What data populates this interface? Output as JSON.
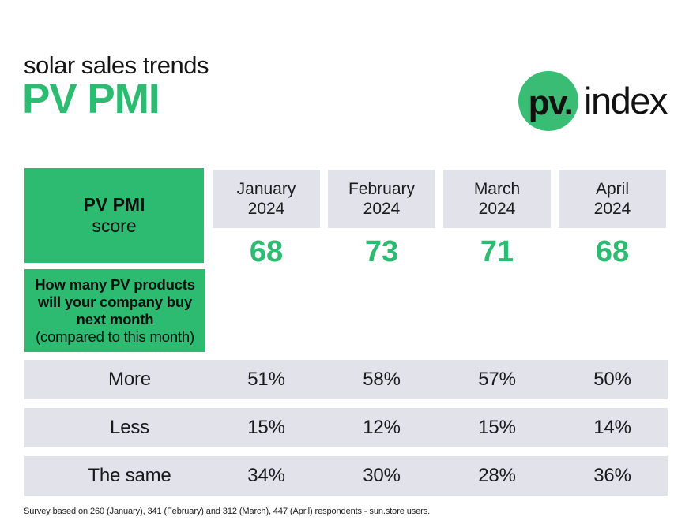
{
  "header": {
    "subtitle": "solar sales trends",
    "title": "PV PMI",
    "logo": {
      "mark": "pv.",
      "name": "index"
    }
  },
  "colors": {
    "accent_green": "#2dba71",
    "band_background": "#e2e2ea",
    "ink": "#141414"
  },
  "score_box": {
    "line1": "PV PMI",
    "line2": "score"
  },
  "question_box": {
    "bold_lines": [
      "How many PV products",
      "will your company buy",
      "next month"
    ],
    "note": "(compared to this month)"
  },
  "months": [
    {
      "line1": "January",
      "line2": "2024"
    },
    {
      "line1": "February",
      "line2": "2024"
    },
    {
      "line1": "March",
      "line2": "2024"
    },
    {
      "line1": "April",
      "line2": "2024"
    }
  ],
  "chart_data": {
    "type": "table",
    "title": "PV PMI score",
    "question": "How many PV products will your company buy next month (compared to this month)",
    "categories": [
      "January 2024",
      "February 2024",
      "March 2024",
      "April 2024"
    ],
    "pmi_scores": [
      68,
      73,
      71,
      68
    ],
    "rows": [
      {
        "label": "More",
        "values": [
          "51%",
          "58%",
          "57%",
          "50%"
        ]
      },
      {
        "label": "Less",
        "values": [
          "15%",
          "12%",
          "15%",
          "14%"
        ]
      },
      {
        "label": "The same",
        "values": [
          "34%",
          "30%",
          "28%",
          "36%"
        ]
      }
    ]
  },
  "footer": {
    "text": "Survey based on 260 (January), 341 (February) and 312 (March), 447 (April) respondents - sun.store users."
  }
}
